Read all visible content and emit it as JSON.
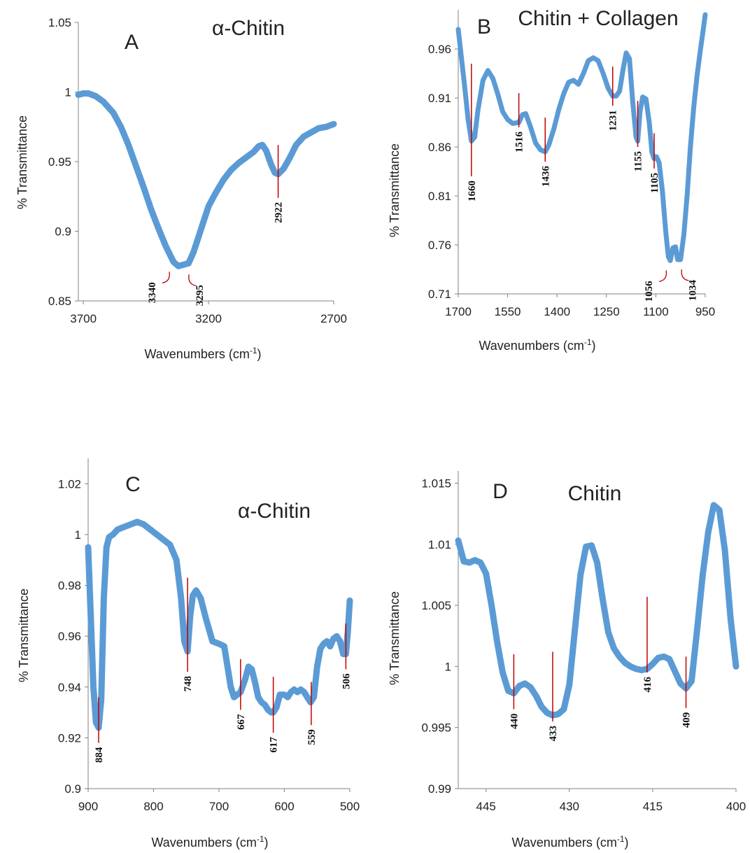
{
  "colors": {
    "series": "#5b9bd5",
    "marker": "#c00000",
    "axis": "#808080"
  },
  "chart_data": [
    {
      "panel": "A",
      "type": "line",
      "title": "α-Chitin",
      "xlabel": "Wavenumbers (cm",
      "xlabel_sup": "-1",
      "xlabel_end": ")",
      "ylabel": "% Transmittance",
      "xlim": [
        3720,
        2700
      ],
      "ylim": [
        0.85,
        1.05
      ],
      "xticks": [
        3700,
        3200,
        2700
      ],
      "yticks": [
        "0.85",
        "0.9",
        "0.95",
        "1",
        "1.05"
      ],
      "series": [
        {
          "x": [
            3720,
            3700,
            3680,
            3650,
            3620,
            3580,
            3550,
            3520,
            3490,
            3460,
            3430,
            3400,
            3370,
            3340,
            3320,
            3300,
            3280,
            3260,
            3240,
            3220,
            3200,
            3170,
            3140,
            3110,
            3080,
            3050,
            3020,
            3000,
            2985,
            2970,
            2950,
            2935,
            2922,
            2900,
            2875,
            2850,
            2820,
            2790,
            2760,
            2730,
            2700
          ],
          "y": [
            0.998,
            0.999,
            0.999,
            0.997,
            0.993,
            0.985,
            0.975,
            0.962,
            0.947,
            0.932,
            0.916,
            0.902,
            0.889,
            0.878,
            0.875,
            0.876,
            0.877,
            0.885,
            0.896,
            0.907,
            0.918,
            0.928,
            0.937,
            0.944,
            0.949,
            0.953,
            0.957,
            0.961,
            0.962,
            0.958,
            0.948,
            0.942,
            0.941,
            0.945,
            0.953,
            0.962,
            0.968,
            0.971,
            0.974,
            0.975,
            0.977
          ]
        }
      ],
      "peaks": [
        {
          "label": "3340",
          "x": 3340,
          "style": "curve"
        },
        {
          "label": "3295",
          "x": 3295,
          "style": "curve"
        },
        {
          "label": "2922",
          "x": 2922,
          "y_top": 0.962,
          "y_bottom": 0.924,
          "style": "line"
        }
      ]
    },
    {
      "panel": "B",
      "type": "line",
      "title": "Chitin + Collagen",
      "xlabel": "Wavenumbers (cm",
      "xlabel_sup": "-1",
      "xlabel_end": ")",
      "ylabel": "% Transmittance",
      "xlim": [
        1700,
        950
      ],
      "ylim": [
        0.71,
        1.0
      ],
      "xticks": [
        1700,
        1550,
        1400,
        1250,
        1100,
        950
      ],
      "yticks": [
        "0.71",
        "0.76",
        "0.81",
        "0.86",
        "0.91",
        "0.96"
      ],
      "series": [
        {
          "x": [
            1700,
            1690,
            1680,
            1670,
            1660,
            1650,
            1640,
            1625,
            1610,
            1595,
            1580,
            1565,
            1550,
            1535,
            1516,
            1505,
            1495,
            1480,
            1465,
            1450,
            1436,
            1425,
            1410,
            1395,
            1380,
            1365,
            1350,
            1335,
            1320,
            1305,
            1290,
            1275,
            1260,
            1245,
            1231,
            1220,
            1210,
            1200,
            1190,
            1180,
            1170,
            1160,
            1155,
            1148,
            1140,
            1130,
            1120,
            1112,
            1105,
            1098,
            1090,
            1080,
            1070,
            1062,
            1056,
            1048,
            1040,
            1034,
            1025,
            1015,
            1005,
            995,
            985,
            975,
            965,
            955,
            950
          ],
          "y": [
            0.98,
            0.95,
            0.92,
            0.888,
            0.866,
            0.87,
            0.898,
            0.928,
            0.938,
            0.93,
            0.914,
            0.896,
            0.888,
            0.884,
            0.885,
            0.893,
            0.894,
            0.88,
            0.864,
            0.857,
            0.855,
            0.862,
            0.878,
            0.898,
            0.914,
            0.926,
            0.928,
            0.924,
            0.935,
            0.948,
            0.951,
            0.948,
            0.935,
            0.92,
            0.912,
            0.912,
            0.917,
            0.938,
            0.956,
            0.95,
            0.905,
            0.87,
            0.866,
            0.896,
            0.911,
            0.909,
            0.885,
            0.855,
            0.848,
            0.85,
            0.844,
            0.815,
            0.774,
            0.748,
            0.744,
            0.757,
            0.758,
            0.745,
            0.745,
            0.77,
            0.81,
            0.86,
            0.9,
            0.932,
            0.958,
            0.982,
            0.995
          ]
        }
      ],
      "peaks": [
        {
          "label": "1660",
          "x": 1660,
          "y_top": 0.945,
          "y_bottom": 0.83,
          "style": "line"
        },
        {
          "label": "1516",
          "x": 1516,
          "y_top": 0.915,
          "y_bottom": 0.88,
          "style": "line"
        },
        {
          "label": "1436",
          "x": 1436,
          "y_top": 0.89,
          "y_bottom": 0.845,
          "style": "line"
        },
        {
          "label": "1231",
          "x": 1231,
          "y_top": 0.942,
          "y_bottom": 0.902,
          "style": "line"
        },
        {
          "label": "1155",
          "x": 1155,
          "y_top": 0.907,
          "y_bottom": 0.86,
          "style": "line"
        },
        {
          "label": "1105",
          "x": 1105,
          "y_top": 0.874,
          "y_bottom": 0.838,
          "style": "line"
        },
        {
          "label": "1056",
          "x": 1056,
          "style": "curve"
        },
        {
          "label": "1034",
          "x": 1034,
          "style": "curve"
        }
      ]
    },
    {
      "panel": "C",
      "type": "line",
      "title": "α-Chitin",
      "xlabel": "Wavenumbers (cm",
      "xlabel_sup": "-1",
      "xlabel_end": ")",
      "ylabel": "% Transmittance",
      "xlim": [
        900,
        500
      ],
      "ylim": [
        0.9,
        1.03
      ],
      "xticks": [
        900,
        800,
        700,
        600,
        500
      ],
      "yticks": [
        "0.9",
        "0.92",
        "0.94",
        "0.96",
        "0.98",
        "1",
        "1.02"
      ],
      "series": [
        {
          "x": [
            900,
            896,
            892,
            888,
            884,
            880,
            876,
            872,
            868,
            862,
            855,
            845,
            835,
            825,
            815,
            805,
            795,
            785,
            775,
            765,
            758,
            753,
            748,
            744,
            740,
            735,
            728,
            720,
            710,
            700,
            692,
            687,
            682,
            677,
            672,
            667,
            660,
            655,
            650,
            645,
            640,
            635,
            630,
            625,
            620,
            617,
            612,
            607,
            600,
            595,
            590,
            585,
            580,
            575,
            570,
            565,
            560,
            555,
            550,
            545,
            540,
            535,
            530,
            525,
            520,
            515,
            510,
            506,
            503,
            500
          ],
          "y": [
            0.995,
            0.968,
            0.94,
            0.926,
            0.924,
            0.935,
            0.975,
            0.995,
            0.999,
            1.0,
            1.002,
            1.003,
            1.004,
            1.005,
            1.004,
            1.002,
            1.0,
            0.998,
            0.996,
            0.99,
            0.975,
            0.958,
            0.954,
            0.968,
            0.976,
            0.978,
            0.975,
            0.967,
            0.958,
            0.957,
            0.956,
            0.948,
            0.94,
            0.936,
            0.937,
            0.938,
            0.943,
            0.948,
            0.947,
            0.942,
            0.936,
            0.934,
            0.933,
            0.931,
            0.93,
            0.93,
            0.932,
            0.937,
            0.937,
            0.936,
            0.938,
            0.939,
            0.938,
            0.939,
            0.938,
            0.936,
            0.934,
            0.936,
            0.948,
            0.955,
            0.957,
            0.958,
            0.956,
            0.959,
            0.96,
            0.958,
            0.953,
            0.953,
            0.962,
            0.974
          ]
        }
      ],
      "peaks": [
        {
          "label": "884",
          "x": 884,
          "y_top": 0.936,
          "y_bottom": 0.918,
          "style": "line"
        },
        {
          "label": "748",
          "x": 748,
          "y_top": 0.983,
          "y_bottom": 0.946,
          "style": "line"
        },
        {
          "label": "667",
          "x": 667,
          "y_top": 0.951,
          "y_bottom": 0.931,
          "style": "line"
        },
        {
          "label": "617",
          "x": 617,
          "y_top": 0.944,
          "y_bottom": 0.922,
          "style": "line"
        },
        {
          "label": "559",
          "x": 559,
          "y_top": 0.942,
          "y_bottom": 0.925,
          "style": "line"
        },
        {
          "label": "506",
          "x": 506,
          "y_top": 0.965,
          "y_bottom": 0.947,
          "style": "line"
        }
      ]
    },
    {
      "panel": "D",
      "type": "line",
      "title": "Chitin",
      "xlabel": "Wavenumbers (cm",
      "xlabel_sup": "-1",
      "xlabel_end": ")",
      "ylabel": "% Transmittance",
      "xlim": [
        450,
        400
      ],
      "ylim": [
        0.99,
        1.016
      ],
      "xticks": [
        445,
        430,
        415,
        400
      ],
      "yticks": [
        "0.99",
        "0.995",
        "1",
        "1.005",
        "1.01",
        "1.015"
      ],
      "series": [
        {
          "x": [
            450,
            449,
            448,
            447,
            446,
            445,
            444,
            443,
            442,
            441,
            440,
            439,
            438,
            437,
            436,
            435,
            434,
            433,
            432,
            431,
            430,
            429,
            428,
            427,
            426,
            425,
            424,
            423,
            422,
            421,
            420,
            419,
            418,
            417,
            416,
            415,
            414,
            413,
            412,
            411,
            410,
            409,
            408,
            407,
            406,
            405,
            404,
            403,
            402,
            401,
            400
          ],
          "y": [
            1.0103,
            1.0086,
            1.0085,
            1.0087,
            1.0085,
            1.0076,
            1.005,
            1.002,
            0.9995,
            0.998,
            0.9978,
            0.9984,
            0.9986,
            0.9983,
            0.9976,
            0.9967,
            0.9962,
            0.996,
            0.9961,
            0.9965,
            0.9985,
            1.003,
            1.0075,
            1.0098,
            1.0099,
            1.0085,
            1.0055,
            1.0028,
            1.0015,
            1.0008,
            1.0003,
            1.0,
            0.9998,
            0.9997,
            0.9998,
            1.0002,
            1.0007,
            1.0008,
            1.0006,
            0.9996,
            0.9986,
            0.9982,
            0.9988,
            1.003,
            1.0075,
            1.011,
            1.0132,
            1.0128,
            1.0095,
            1.004,
            1.0
          ]
        }
      ],
      "peaks": [
        {
          "label": "440",
          "x": 440,
          "y_top": 1.001,
          "y_bottom": 0.9965,
          "style": "line"
        },
        {
          "label": "433",
          "x": 433,
          "y_top": 1.0012,
          "y_bottom": 0.9955,
          "style": "line"
        },
        {
          "label": "416",
          "x": 416,
          "y_top": 1.0057,
          "y_bottom": 0.9995,
          "style": "line"
        },
        {
          "label": "409",
          "x": 409,
          "y_top": 1.0008,
          "y_bottom": 0.9966,
          "style": "line"
        }
      ]
    }
  ]
}
